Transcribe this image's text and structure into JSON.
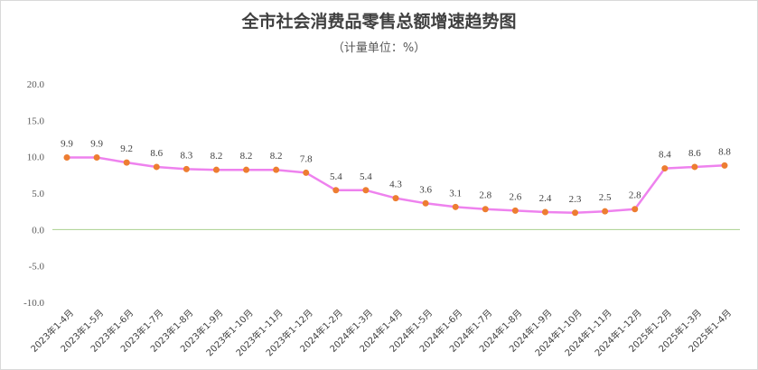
{
  "chart_data": {
    "type": "line",
    "title": "全市社会消费品零售总额增速趋势图",
    "subtitle": "（计量单位：%）",
    "categories": [
      "2023年1-4月",
      "2023年1-5月",
      "2023年1-6月",
      "2023年1-7月",
      "2023年1-8月",
      "2023年1-9月",
      "2023年1-10月",
      "2023年1-11月",
      "2023年1-12月",
      "2024年1-2月",
      "2024年1-3月",
      "2024年1-4月",
      "2024年1-5月",
      "2024年1-6月",
      "2024年1-7月",
      "2024年1-8月",
      "2024年1-9月",
      "2024年1-10月",
      "2024年1-11月",
      "2024年1-12月",
      "2025年1-2月",
      "2025年1-3月",
      "2025年1-4月"
    ],
    "values": [
      9.9,
      9.9,
      9.2,
      8.6,
      8.3,
      8.2,
      8.2,
      8.2,
      7.8,
      5.4,
      5.4,
      4.3,
      3.6,
      3.1,
      2.8,
      2.6,
      2.4,
      2.3,
      2.5,
      2.8,
      8.4,
      8.6,
      8.8
    ],
    "data_labels": [
      "9.9",
      "9.9",
      "9.2",
      "8.6",
      "8.3",
      "8.2",
      "8.2",
      "8.2",
      "7.8",
      "5.4",
      "5.4",
      "4.3",
      "3.6",
      "3.1",
      "2.8",
      "2.6",
      "2.4",
      "2.3",
      "2.5",
      "2.8",
      "8.4",
      "8.6",
      "8.8"
    ],
    "ylim": [
      -10,
      20
    ],
    "y_ticks": [
      "20.0",
      "15.0",
      "10.0",
      "5.0",
      "0.0",
      "-5.0",
      "-10.0"
    ],
    "y_tick_values": [
      20,
      15,
      10,
      5,
      0,
      -5,
      -10
    ],
    "grid": false,
    "legend": "none",
    "colors": {
      "line": "#ee82ee",
      "marker": "#ed7d31",
      "zero_line": "#a9d18e",
      "text": "#404040"
    }
  }
}
